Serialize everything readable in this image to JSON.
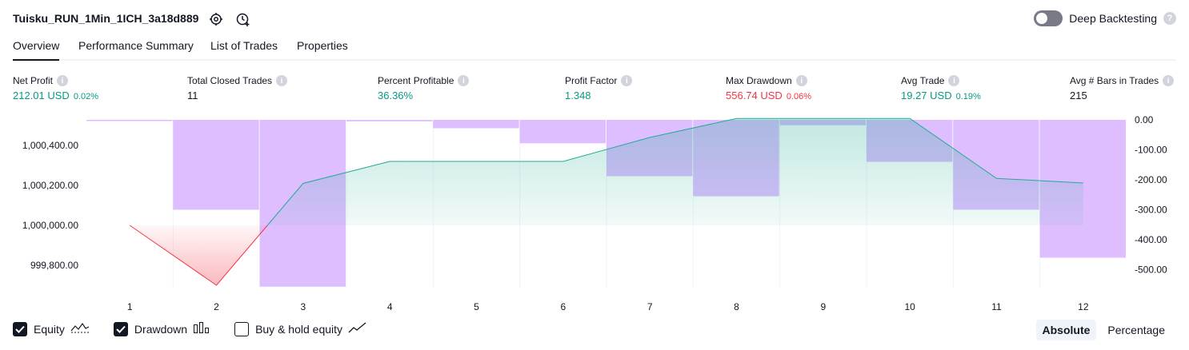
{
  "header": {
    "title": "Tuisku_RUN_1Min_1ICH_3a18d889",
    "deep_backtesting_label": "Deep Backtesting"
  },
  "tabs": [
    {
      "label": "Overview",
      "active": true
    },
    {
      "label": "Performance Summary",
      "active": false
    },
    {
      "label": "List of Trades",
      "active": false
    },
    {
      "label": "Properties",
      "active": false
    }
  ],
  "stats": [
    {
      "label": "Net Profit",
      "value": "212.01 USD",
      "pct": "0.02%",
      "color": "green"
    },
    {
      "label": "Total Closed Trades",
      "value": "11",
      "pct": "",
      "color": "dark"
    },
    {
      "label": "Percent Profitable",
      "value": "36.36%",
      "pct": "",
      "color": "green"
    },
    {
      "label": "Profit Factor",
      "value": "1.348",
      "pct": "",
      "color": "green"
    },
    {
      "label": "Max Drawdown",
      "value": "556.74 USD",
      "pct": "0.06%",
      "color": "red"
    },
    {
      "label": "Avg Trade",
      "value": "19.27 USD",
      "pct": "0.19%",
      "color": "green"
    },
    {
      "label": "Avg # Bars in Trades",
      "value": "215",
      "pct": "",
      "color": "dark"
    }
  ],
  "chart_data": {
    "type": "line",
    "x": [
      1,
      2,
      3,
      4,
      5,
      6,
      7,
      8,
      9,
      10,
      11,
      12
    ],
    "series": [
      {
        "name": "Equity",
        "values": [
          1000000.0,
          999700.0,
          1000210.0,
          1000320.0,
          1000320.0,
          1000320.0,
          1000440.0,
          1000535.0,
          1000535.0,
          1000535.0,
          1000235.0,
          1000212.0
        ]
      },
      {
        "name": "Drawdown",
        "type": "bar",
        "axis": "right",
        "values": [
          0.0,
          -300.0,
          -556.74,
          -5.0,
          -28.0,
          -78.0,
          -188.0,
          -255.0,
          -18.0,
          -140.0,
          -300.0,
          -460.0
        ]
      }
    ],
    "left_axis": {
      "ticks": [
        "999,800.00",
        "1,000,000.00",
        "1,000,200.00",
        "1,000,400.00"
      ],
      "range": [
        999700,
        1000535
      ]
    },
    "right_axis": {
      "ticks": [
        "0.00",
        "-100.00",
        "-200.00",
        "-300.00",
        "-400.00",
        "-500.00"
      ],
      "range": [
        -556.74,
        0
      ]
    },
    "colors": {
      "equity_line": "#22ab94",
      "equity_fill": "#22ab94",
      "loss_line": "#f23645",
      "drawdown_bar": "#c289ff"
    }
  },
  "legend": [
    {
      "label": "Equity",
      "checked": true,
      "icon": "equity-line-icon"
    },
    {
      "label": "Drawdown",
      "checked": true,
      "icon": "drawdown-bars-icon"
    },
    {
      "label": "Buy & hold equity",
      "checked": false,
      "icon": "buy-hold-line-icon"
    }
  ],
  "modes": [
    {
      "label": "Absolute",
      "active": true
    },
    {
      "label": "Percentage",
      "active": false
    }
  ]
}
